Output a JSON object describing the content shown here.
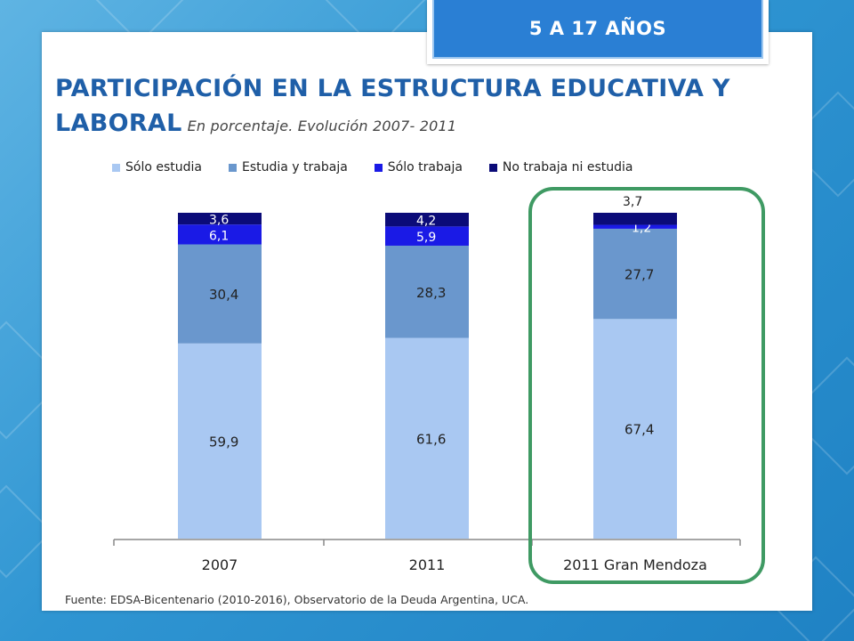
{
  "badge": {
    "label": "5 A 17 AÑOS"
  },
  "title": {
    "line1": "PARTICIPACIÓN EN LA ESTRUCTURA EDUCATIVA Y",
    "line2": "LABORAL",
    "subtitle": "En porcentaje. Evolución 2007- 2011"
  },
  "colors": {
    "accent_title": "#1f5fa8",
    "highlight_frame": "#3f9a63",
    "badge_bg": "#2a7fd4"
  },
  "chart_data": {
    "type": "bar",
    "stacked": true,
    "categories": [
      "2007",
      "2011",
      "2011 Gran Mendoza"
    ],
    "series": [
      {
        "name": "Sólo estudia",
        "color": "#a9c8f2",
        "values": [
          59.9,
          61.6,
          67.4
        ],
        "labels": [
          "59,9",
          "61,6",
          "67,4"
        ]
      },
      {
        "name": "Estudia y trabaja",
        "color": "#6a97cd",
        "values": [
          30.4,
          28.3,
          27.7
        ],
        "labels": [
          "30,4",
          "28,3",
          "27,7"
        ]
      },
      {
        "name": "Sólo trabaja",
        "color": "#1a1ae6",
        "values": [
          6.1,
          5.9,
          1.2
        ],
        "labels": [
          "6,1",
          "5,9",
          "1,2"
        ]
      },
      {
        "name": "No trabaja ni estudia",
        "color": "#0b0b78",
        "values": [
          3.6,
          4.2,
          3.7
        ],
        "labels": [
          "3,6",
          "4,2",
          "3,7"
        ]
      }
    ],
    "ylim": [
      0,
      100
    ],
    "legend_position": "top",
    "grid": false,
    "highlighted_category": "2011 Gran Mendoza"
  },
  "source": "Fuente: EDSA-Bicentenario (2010-2016), Observatorio de la Deuda Argentina, UCA."
}
